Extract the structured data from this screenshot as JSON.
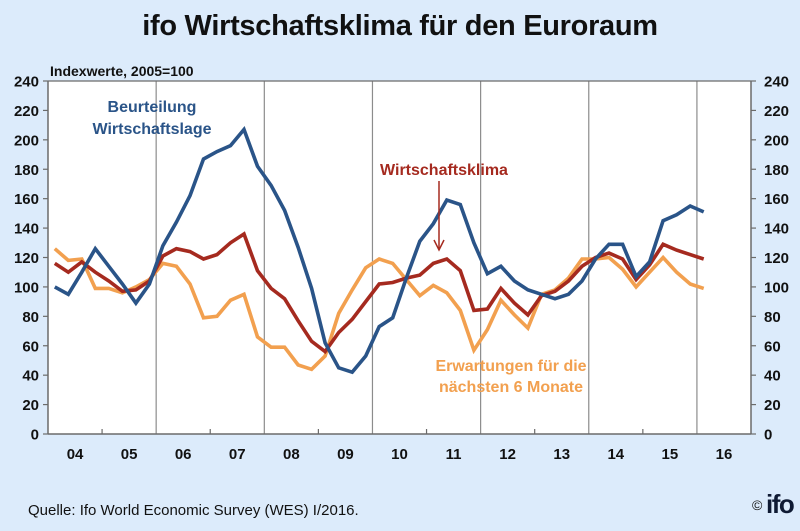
{
  "chart_data": {
    "type": "line",
    "title": "ifo Wirtschaftsklima für den Euroraum",
    "ylabel": "Indexwerte, 2005=100",
    "xlabel": "",
    "ylim": [
      0,
      240
    ],
    "yticks": [
      0,
      20,
      40,
      60,
      80,
      100,
      120,
      140,
      160,
      180,
      200,
      220,
      240
    ],
    "ytick_labels": [
      "0",
      "20",
      "40",
      "60",
      "80",
      "100",
      "120",
      "140",
      "160",
      "180",
      "200",
      "220",
      "240"
    ],
    "secondary_yaxis": true,
    "x_frequency": "quarterly",
    "x_start": "2004 Q1",
    "x_end": "2016 Q1",
    "xtick_labels": [
      "04",
      "05",
      "06",
      "07",
      "08",
      "09",
      "10",
      "11",
      "12",
      "13",
      "14",
      "15",
      "16"
    ],
    "vertical_gridlines_at_year_starts": [
      "06",
      "08",
      "10",
      "12",
      "14",
      "16"
    ],
    "grid": false,
    "series": [
      {
        "name": "Beurteilung Wirtschaftslage",
        "color": "#2a5488",
        "values": [
          100,
          95,
          110,
          126,
          114,
          102,
          89,
          102,
          128,
          144,
          162,
          187,
          192,
          196,
          207,
          182,
          169,
          152,
          127,
          99,
          62,
          45,
          42,
          53,
          73,
          79,
          106,
          131,
          143,
          159,
          156,
          130,
          109,
          114,
          104,
          98,
          95,
          92,
          95,
          104,
          119,
          129,
          129,
          107,
          117,
          145,
          149,
          155,
          151
        ]
      },
      {
        "name": "Wirtschaftsklima",
        "color": "#a52a1f",
        "values": [
          116,
          110,
          117,
          110,
          104,
          97,
          98,
          104,
          121,
          126,
          124,
          119,
          122,
          130,
          136,
          111,
          99,
          92,
          77,
          63,
          56,
          69,
          78,
          90,
          102,
          103,
          106,
          108,
          116,
          119,
          111,
          84,
          85,
          99,
          89,
          81,
          94,
          97,
          104,
          114,
          120,
          123,
          119,
          105,
          115,
          129,
          125,
          122,
          119
        ]
      },
      {
        "name": "Erwartungen für die nächsten 6 Monate",
        "color": "#f2a04f",
        "values": [
          126,
          118,
          119,
          99,
          99,
          96,
          100,
          105,
          116,
          114,
          102,
          79,
          80,
          91,
          95,
          66,
          59,
          59,
          47,
          44,
          53,
          82,
          98,
          113,
          119,
          116,
          105,
          94,
          101,
          96,
          84,
          57,
          71,
          91,
          81,
          72,
          95,
          98,
          106,
          119,
          119,
          120,
          112,
          100,
          110,
          120,
          110,
          102,
          99
        ]
      }
    ],
    "annotations": [
      {
        "text_lines": [
          "Beurteilung",
          "Wirtschaftslage"
        ],
        "series": "Beurteilung Wirtschaftslage",
        "color": "#2a5488",
        "placement": "top-left"
      },
      {
        "text_lines": [
          "Wirtschaftsklima"
        ],
        "series": "Wirtschaftsklima",
        "color": "#a52a1f",
        "placement": "center-top",
        "arrow": true,
        "arrow_points_to": "2011 Q1"
      },
      {
        "text_lines": [
          "Erwartungen für die",
          "nächsten 6 Monate"
        ],
        "series": "Erwartungen für die nächsten 6 Monate",
        "color": "#f2a04f",
        "placement": "bottom-center"
      }
    ],
    "legend": "none (inline labels)"
  },
  "footer": {
    "source": "Quelle: Ifo World Economic Survey (WES) I/2016.",
    "copyright": "©",
    "logo": "ifo"
  }
}
